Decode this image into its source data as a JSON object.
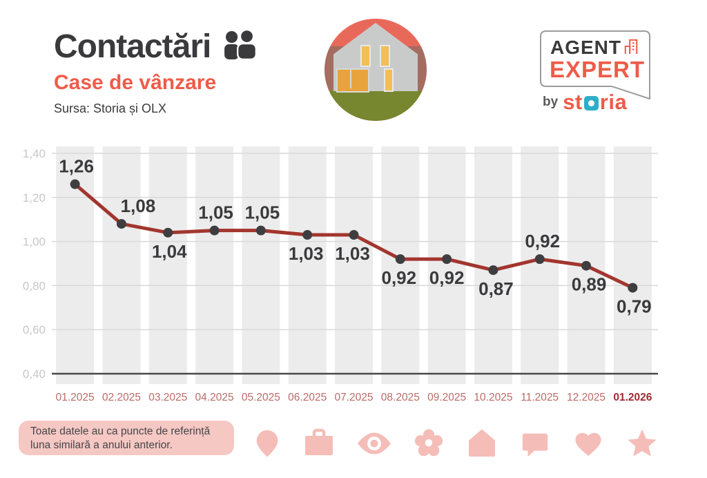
{
  "header": {
    "title": "Contactări",
    "title_icon": "people-icon",
    "subtitle": "Case de vânzare",
    "source": "Sursa: Storia și OLX"
  },
  "logo": {
    "line1": "AGENT",
    "line2": "EXPERT",
    "by": "by",
    "brand": {
      "text": "storia",
      "pre": "st",
      "post": "ria"
    },
    "colors": {
      "orange": "#EF5B4A",
      "dark": "#3A3A3C",
      "teal": "#2FAEC7"
    }
  },
  "chart_data": {
    "type": "line",
    "title": "Contactări — Case de vânzare",
    "categories": [
      "01.2025",
      "02.2025",
      "03.2025",
      "04.2025",
      "05.2025",
      "06.2025",
      "07.2025",
      "08.2025",
      "09.2025",
      "10.2025",
      "11.2025",
      "12.2025",
      "01.2026"
    ],
    "values": [
      1.26,
      1.08,
      1.04,
      1.05,
      1.05,
      1.03,
      1.03,
      0.92,
      0.92,
      0.87,
      0.92,
      0.89,
      0.79
    ],
    "point_labels": [
      "1,26",
      "1,08",
      "1,04",
      "1,05",
      "1,05",
      "1,03",
      "1,03",
      "0,92",
      "0,92",
      "0,87",
      "0,92",
      "0,89",
      "0,79"
    ],
    "label_position": [
      "above",
      "above",
      "below",
      "above",
      "above",
      "below",
      "below",
      "below",
      "below",
      "below",
      "above",
      "below",
      "below"
    ],
    "label_dx": [
      2,
      24,
      2,
      2,
      2,
      -2,
      -2,
      -2,
      0,
      4,
      4,
      4,
      2
    ],
    "ylim": [
      0.4,
      1.4
    ],
    "yticks": [
      {
        "value": 1.4,
        "label": "1,40"
      },
      {
        "value": 1.2,
        "label": "1,20"
      },
      {
        "value": 1.0,
        "label": "1,00"
      },
      {
        "value": 0.8,
        "label": "0,80"
      },
      {
        "value": 0.6,
        "label": "0,60"
      },
      {
        "value": 0.4,
        "label": "0,40"
      }
    ],
    "grid": true,
    "legend": "none",
    "highlight_last_category": true,
    "colors": {
      "line": "#A2362E",
      "point": "#3E3E40",
      "stripe": "#ECECEC",
      "gridline": "#D9D9D9",
      "axis": "#48484A",
      "tick_label": "#C7C7C7",
      "x_label": "#B96B66",
      "x_label_last": "#9E2A32",
      "value_label": "#3A3A3C"
    }
  },
  "note": {
    "lines": [
      "Toate datele au ca puncte de referință",
      "luna similară a anului anterior."
    ]
  },
  "footer": {
    "icons": [
      "location-pin",
      "briefcase",
      "eye",
      "flower",
      "house",
      "speech-bubble",
      "heart",
      "star"
    ],
    "icon_color": "#F5BDB8"
  }
}
